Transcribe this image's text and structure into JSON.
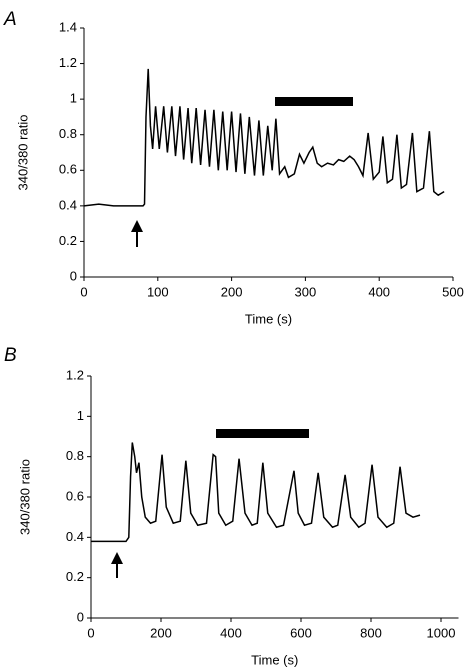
{
  "chart_data": [
    {
      "type": "line",
      "panel_label": "A",
      "x_label": "Time (s)",
      "y_label": "340/380 ratio",
      "color": "#000000",
      "xlim": [
        0,
        500
      ],
      "xticks": [
        0,
        100,
        200,
        300,
        400,
        500
      ],
      "ylim": [
        0,
        1.4
      ],
      "yticks": [
        0,
        0.2,
        0.4,
        0.6,
        0.8,
        1,
        1.2,
        1.4
      ],
      "x": [
        0,
        20,
        40,
        60,
        80,
        82,
        84,
        87,
        90,
        93,
        97,
        102,
        108,
        113,
        119,
        124,
        130,
        135,
        141,
        146,
        152,
        158,
        164,
        170,
        176,
        182,
        188,
        194,
        200,
        206,
        212,
        218,
        224,
        231,
        237,
        243,
        249,
        255,
        260,
        265,
        272,
        277,
        285,
        292,
        298,
        305,
        310,
        316,
        322,
        330,
        338,
        345,
        352,
        360,
        366,
        372,
        378,
        385,
        392,
        400,
        405,
        411,
        418,
        424,
        430,
        437,
        445,
        451,
        460,
        468,
        474,
        480,
        488
      ],
      "values": [
        0.4,
        0.41,
        0.4,
        0.4,
        0.4,
        0.41,
        0.9,
        1.17,
        0.85,
        0.72,
        0.96,
        0.72,
        0.96,
        0.7,
        0.96,
        0.68,
        0.96,
        0.66,
        0.95,
        0.64,
        0.95,
        0.63,
        0.94,
        0.62,
        0.94,
        0.6,
        0.93,
        0.6,
        0.93,
        0.59,
        0.92,
        0.58,
        0.9,
        0.57,
        0.88,
        0.57,
        0.85,
        0.6,
        0.89,
        0.58,
        0.62,
        0.56,
        0.58,
        0.69,
        0.64,
        0.7,
        0.73,
        0.64,
        0.62,
        0.64,
        0.63,
        0.66,
        0.65,
        0.68,
        0.66,
        0.62,
        0.57,
        0.81,
        0.55,
        0.59,
        0.79,
        0.53,
        0.55,
        0.8,
        0.5,
        0.52,
        0.81,
        0.48,
        0.5,
        0.82,
        0.48,
        0.46,
        0.48
      ]
    },
    {
      "type": "line",
      "panel_label": "B",
      "x_label": "Time (s)",
      "y_label": "340/380 ratio",
      "color": "#000000",
      "xlim": [
        0,
        1050
      ],
      "xticks": [
        0,
        200,
        400,
        600,
        800,
        1000
      ],
      "ylim": [
        0,
        1.2
      ],
      "yticks": [
        0,
        0.2,
        0.4,
        0.6,
        0.8,
        1,
        1.2
      ],
      "x": [
        0,
        50,
        100,
        108,
        113,
        118,
        125,
        130,
        137,
        145,
        155,
        170,
        185,
        203,
        215,
        235,
        255,
        271,
        285,
        305,
        330,
        349,
        356,
        365,
        385,
        405,
        423,
        440,
        460,
        475,
        491,
        505,
        530,
        550,
        580,
        592,
        610,
        630,
        649,
        665,
        690,
        705,
        726,
        742,
        765,
        783,
        803,
        820,
        845,
        865,
        883,
        900,
        920,
        940
      ],
      "values": [
        0.38,
        0.38,
        0.38,
        0.4,
        0.7,
        0.87,
        0.8,
        0.72,
        0.77,
        0.6,
        0.5,
        0.47,
        0.48,
        0.81,
        0.55,
        0.47,
        0.48,
        0.78,
        0.52,
        0.46,
        0.47,
        0.81,
        0.8,
        0.52,
        0.46,
        0.48,
        0.79,
        0.52,
        0.46,
        0.47,
        0.77,
        0.52,
        0.45,
        0.46,
        0.73,
        0.52,
        0.46,
        0.47,
        0.72,
        0.5,
        0.45,
        0.46,
        0.71,
        0.5,
        0.45,
        0.47,
        0.76,
        0.5,
        0.45,
        0.47,
        0.75,
        0.52,
        0.5,
        0.51
      ]
    }
  ]
}
